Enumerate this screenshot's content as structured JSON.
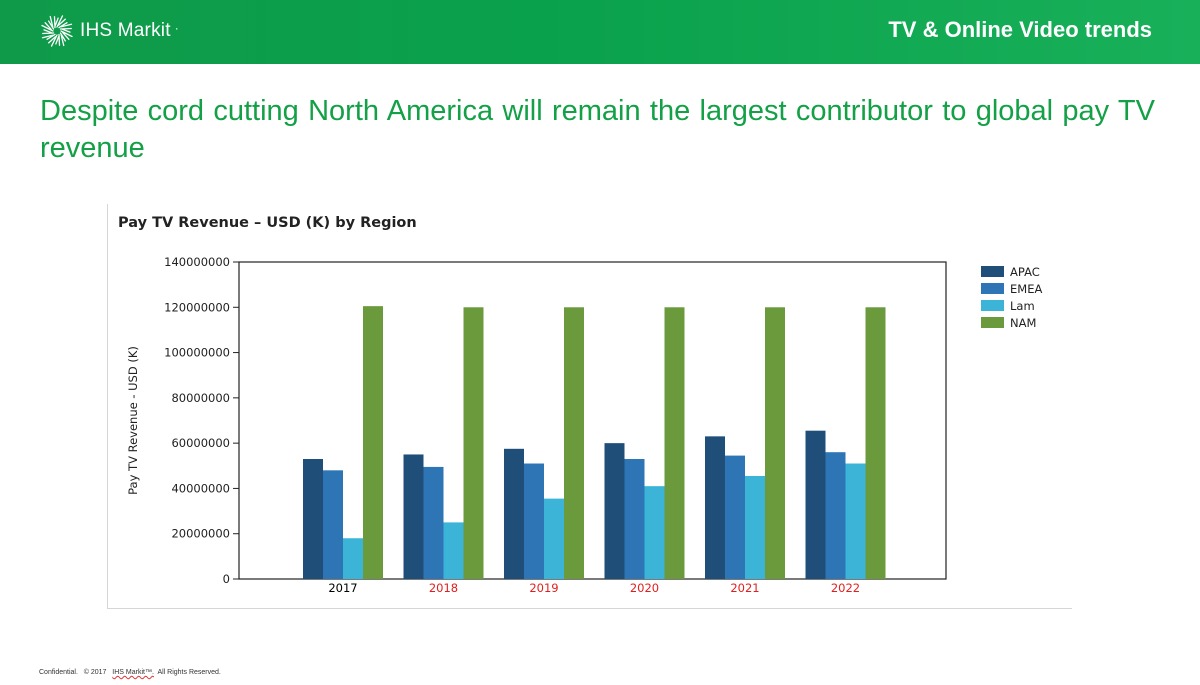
{
  "header": {
    "logo_text": "IHS Markit",
    "logo_mark": "·",
    "title": "TV & Online Video trends"
  },
  "headline": "Despite cord cutting North America will remain the largest contributor to global pay TV revenue",
  "footer": {
    "confidential": "Confidential.",
    "copyright": "© 2017",
    "brand": "IHS Markit™.",
    "rights": "All Rights Reserved."
  },
  "chart_data": {
    "type": "bar",
    "title": "Pay TV Revenue – USD (K) by Region",
    "xlabel": "",
    "ylabel": "Pay TV Revenue - USD (K)",
    "ylim": [
      0,
      140000000
    ],
    "yticks": [
      0,
      20000000,
      40000000,
      60000000,
      80000000,
      100000000,
      120000000,
      140000000
    ],
    "grid": false,
    "legend_position": "right",
    "categories": [
      "2017",
      "2018",
      "2019",
      "2020",
      "2021",
      "2022"
    ],
    "category_label_colors": [
      "#000000",
      "#e02020",
      "#e02020",
      "#e02020",
      "#e02020",
      "#e02020"
    ],
    "series": [
      {
        "name": "APAC",
        "color": "#1f4e79",
        "values": [
          53000000,
          55000000,
          57500000,
          60000000,
          63000000,
          65500000
        ]
      },
      {
        "name": "EMEA",
        "color": "#2e75b6",
        "values": [
          48000000,
          49500000,
          51000000,
          53000000,
          54500000,
          56000000
        ]
      },
      {
        "name": "Lam",
        "color": "#3bb4d8",
        "values": [
          18000000,
          25000000,
          35500000,
          41000000,
          45500000,
          51000000
        ]
      },
      {
        "name": "NAM",
        "color": "#6a9a3c",
        "values": [
          120500000,
          120000000,
          120000000,
          120000000,
          120000000,
          120000000
        ]
      }
    ]
  }
}
